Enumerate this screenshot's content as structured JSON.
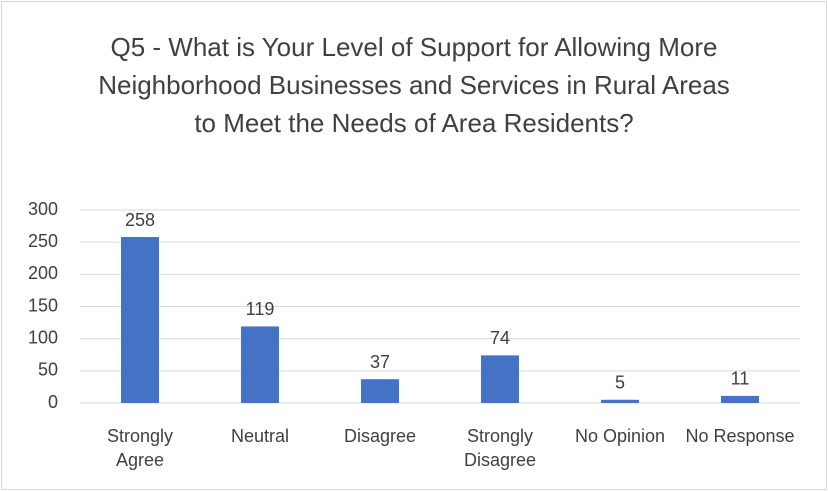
{
  "chart_data": {
    "type": "bar",
    "title": "Q5 - What is Your Level of Support for Allowing More Neighborhood Businesses and Services in Rural Areas to Meet the Needs of Area Residents?",
    "categories": [
      "Strongly Agree",
      "Neutral",
      "Disagree",
      "Strongly Disagree",
      "No Opinion",
      "No Response"
    ],
    "values": [
      258,
      119,
      37,
      74,
      5,
      11
    ],
    "color": "#4472c4",
    "ylim": [
      0,
      300
    ],
    "yticks": [
      0,
      50,
      100,
      150,
      200,
      250,
      300
    ],
    "grid": true
  }
}
